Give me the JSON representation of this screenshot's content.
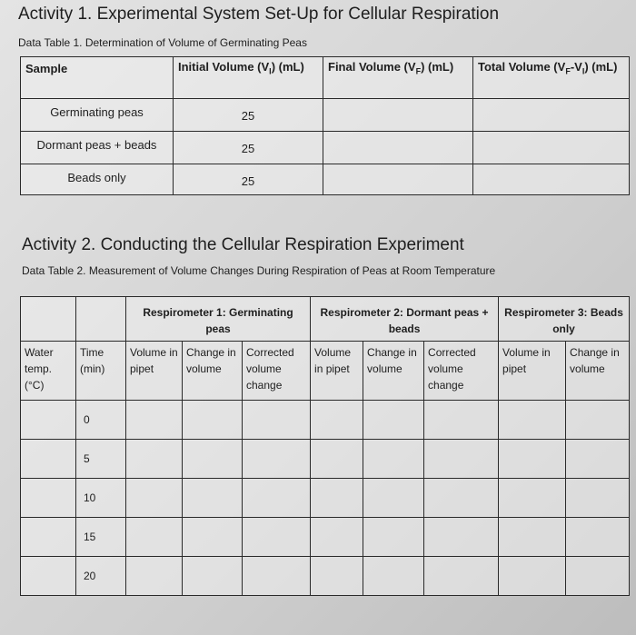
{
  "activity1": {
    "title": "Activity 1. Experimental System Set-Up for Cellular Respiration",
    "caption": "Data Table 1. Determination of Volume of Germinating Peas",
    "header": [
      [
        "Sample"
      ],
      [
        "Initial Volume (V",
        "I",
        ") (mL)"
      ],
      [
        "Final Volume (V",
        "F",
        ") (mL)"
      ],
      [
        "Total Volume (V",
        "F",
        "-V",
        "I",
        ") (mL)"
      ]
    ],
    "rows": [
      {
        "sample": "Germinating peas",
        "initial": 25
      },
      {
        "sample": "Dormant peas + beads",
        "initial": 25
      },
      {
        "sample": "Beads only",
        "initial": 25
      }
    ]
  },
  "activity2": {
    "title": "Activity 2. Conducting the Cellular Respiration Experiment",
    "caption": "Data Table 2. Measurement of Volume Changes During Respiration of Peas at Room Temperature",
    "group_headers": [
      "Respirometer 1: Germinating peas",
      "Respirometer 2: Dormant peas + beads",
      "Respirometer 3: Beads only"
    ],
    "column_headers": [
      "Water temp. (°C)",
      "Time (min)",
      "Volume in pipet",
      "Change in volume",
      "Corrected volume change",
      "Volume in pipet",
      "Change in volume",
      "Corrected volume change",
      "Volume in pipet",
      "Change in volume"
    ],
    "times": [
      0,
      5,
      10,
      15,
      20
    ]
  }
}
